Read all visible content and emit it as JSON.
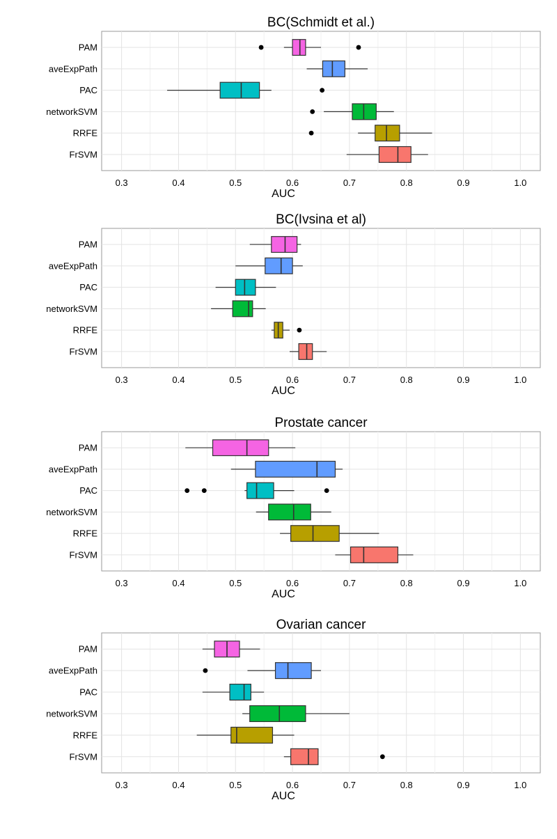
{
  "chart_data": [
    {
      "type": "boxplot",
      "title": "BC(Schmidt et al.)",
      "xlabel": "AUC",
      "ylabel": "",
      "xlim": [
        0.265,
        1.035
      ],
      "xticks": [
        "0.3",
        "0.4",
        "0.5",
        "0.6",
        "0.7",
        "0.8",
        "0.9",
        "1.0"
      ],
      "grid": true,
      "series": [
        {
          "name": "PAM",
          "color": "#F564E3",
          "whisker_low": 0.585,
          "q1": 0.6,
          "median": 0.613,
          "q3": 0.623,
          "whisker_high": 0.65,
          "outliers": [
            0.545,
            0.716
          ]
        },
        {
          "name": "aveExpPath",
          "color": "#619CFF",
          "whisker_low": 0.625,
          "q1": 0.653,
          "median": 0.67,
          "q3": 0.692,
          "whisker_high": 0.732,
          "outliers": []
        },
        {
          "name": "PAC",
          "color": "#00BFC4",
          "whisker_low": 0.38,
          "q1": 0.473,
          "median": 0.51,
          "q3": 0.542,
          "whisker_high": 0.563,
          "outliers": [
            0.652
          ]
        },
        {
          "name": "networkSVM",
          "color": "#00BA38",
          "whisker_low": 0.655,
          "q1": 0.705,
          "median": 0.725,
          "q3": 0.747,
          "whisker_high": 0.778,
          "outliers": [
            0.635
          ]
        },
        {
          "name": "RRFE",
          "color": "#B79F00",
          "whisker_low": 0.715,
          "q1": 0.745,
          "median": 0.765,
          "q3": 0.788,
          "whisker_high": 0.845,
          "outliers": [
            0.633
          ]
        },
        {
          "name": "FrSVM",
          "color": "#F8766D",
          "whisker_low": 0.695,
          "q1": 0.752,
          "median": 0.785,
          "q3": 0.808,
          "whisker_high": 0.838,
          "outliers": []
        }
      ]
    },
    {
      "type": "boxplot",
      "title": "BC(Ivsina et al)",
      "xlabel": "AUC",
      "ylabel": "",
      "xlim": [
        0.265,
        1.035
      ],
      "xticks": [
        "0.3",
        "0.4",
        "0.5",
        "0.6",
        "0.7",
        "0.8",
        "0.9",
        "1.0"
      ],
      "grid": true,
      "series": [
        {
          "name": "PAM",
          "color": "#F564E3",
          "whisker_low": 0.525,
          "q1": 0.563,
          "median": 0.587,
          "q3": 0.608,
          "whisker_high": 0.615,
          "outliers": []
        },
        {
          "name": "aveExpPath",
          "color": "#619CFF",
          "whisker_low": 0.5,
          "q1": 0.552,
          "median": 0.58,
          "q3": 0.6,
          "whisker_high": 0.618,
          "outliers": []
        },
        {
          "name": "PAC",
          "color": "#00BFC4",
          "whisker_low": 0.465,
          "q1": 0.5,
          "median": 0.516,
          "q3": 0.535,
          "whisker_high": 0.571,
          "outliers": []
        },
        {
          "name": "networkSVM",
          "color": "#00BA38",
          "whisker_low": 0.457,
          "q1": 0.495,
          "median": 0.523,
          "q3": 0.53,
          "whisker_high": 0.553,
          "outliers": []
        },
        {
          "name": "RRFE",
          "color": "#B79F00",
          "whisker_low": 0.563,
          "q1": 0.568,
          "median": 0.575,
          "q3": 0.583,
          "whisker_high": 0.595,
          "outliers": [
            0.612
          ]
        },
        {
          "name": "FrSVM",
          "color": "#F8766D",
          "whisker_low": 0.595,
          "q1": 0.611,
          "median": 0.625,
          "q3": 0.635,
          "whisker_high": 0.66,
          "outliers": []
        }
      ]
    },
    {
      "type": "boxplot",
      "title": "Prostate cancer",
      "xlabel": "AUC",
      "ylabel": "",
      "xlim": [
        0.265,
        1.035
      ],
      "xticks": [
        "0.3",
        "0.4",
        "0.5",
        "0.6",
        "0.7",
        "0.8",
        "0.9",
        "1.0"
      ],
      "grid": true,
      "series": [
        {
          "name": "PAM",
          "color": "#F564E3",
          "whisker_low": 0.412,
          "q1": 0.46,
          "median": 0.52,
          "q3": 0.558,
          "whisker_high": 0.605,
          "outliers": []
        },
        {
          "name": "aveExpPath",
          "color": "#619CFF",
          "whisker_low": 0.492,
          "q1": 0.535,
          "median": 0.643,
          "q3": 0.675,
          "whisker_high": 0.688,
          "outliers": []
        },
        {
          "name": "PAC",
          "color": "#00BFC4",
          "whisker_low": 0.516,
          "q1": 0.52,
          "median": 0.537,
          "q3": 0.567,
          "whisker_high": 0.603,
          "outliers": [
            0.415,
            0.445,
            0.66
          ]
        },
        {
          "name": "networkSVM",
          "color": "#00BA38",
          "whisker_low": 0.536,
          "q1": 0.558,
          "median": 0.602,
          "q3": 0.632,
          "whisker_high": 0.668,
          "outliers": []
        },
        {
          "name": "RRFE",
          "color": "#B79F00",
          "whisker_low": 0.578,
          "q1": 0.597,
          "median": 0.636,
          "q3": 0.682,
          "whisker_high": 0.752,
          "outliers": []
        },
        {
          "name": "FrSVM",
          "color": "#F8766D",
          "whisker_low": 0.675,
          "q1": 0.702,
          "median": 0.725,
          "q3": 0.785,
          "whisker_high": 0.812,
          "outliers": []
        }
      ]
    },
    {
      "type": "boxplot",
      "title": "Ovarian cancer",
      "xlabel": "AUC",
      "ylabel": "",
      "xlim": [
        0.265,
        1.035
      ],
      "xticks": [
        "0.3",
        "0.4",
        "0.5",
        "0.6",
        "0.7",
        "0.8",
        "0.9",
        "1.0"
      ],
      "grid": true,
      "series": [
        {
          "name": "PAM",
          "color": "#F564E3",
          "whisker_low": 0.442,
          "q1": 0.463,
          "median": 0.485,
          "q3": 0.507,
          "whisker_high": 0.543,
          "outliers": []
        },
        {
          "name": "aveExpPath",
          "color": "#619CFF",
          "whisker_low": 0.521,
          "q1": 0.57,
          "median": 0.592,
          "q3": 0.633,
          "whisker_high": 0.65,
          "outliers": [
            0.447
          ]
        },
        {
          "name": "PAC",
          "color": "#00BFC4",
          "whisker_low": 0.442,
          "q1": 0.49,
          "median": 0.515,
          "q3": 0.527,
          "whisker_high": 0.55,
          "outliers": []
        },
        {
          "name": "networkSVM",
          "color": "#00BA38",
          "whisker_low": 0.512,
          "q1": 0.525,
          "median": 0.577,
          "q3": 0.623,
          "whisker_high": 0.7,
          "outliers": []
        },
        {
          "name": "RRFE",
          "color": "#B79F00",
          "whisker_low": 0.432,
          "q1": 0.492,
          "median": 0.502,
          "q3": 0.565,
          "whisker_high": 0.603,
          "outliers": []
        },
        {
          "name": "FrSVM",
          "color": "#F8766D",
          "whisker_low": 0.585,
          "q1": 0.597,
          "median": 0.628,
          "q3": 0.645,
          "whisker_high": 0.645,
          "outliers": [
            0.758
          ]
        }
      ]
    }
  ]
}
